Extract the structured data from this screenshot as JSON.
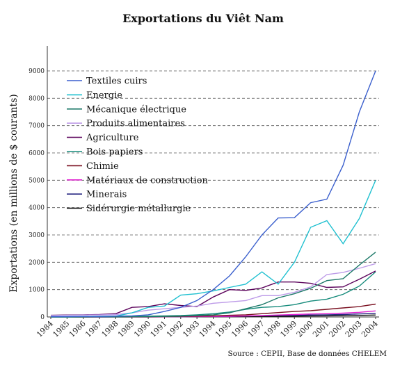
{
  "chart_data": {
    "type": "line",
    "title": "Exportations du Viêt Nam",
    "ylabel": "Exportations (en millions de $ courants)",
    "xlabel": "",
    "source": "Source : CEPII, Base de données CHELEM",
    "ylim": [
      0,
      9000
    ],
    "yticks": [
      0,
      1000,
      2000,
      3000,
      4000,
      5000,
      6000,
      7000,
      8000,
      9000
    ],
    "grid": "horizontal dashed",
    "legend_position": "top-left",
    "x": [
      1984,
      1985,
      1986,
      1987,
      1988,
      1989,
      1990,
      1991,
      1992,
      1993,
      1994,
      1995,
      1996,
      1997,
      1998,
      1999,
      2000,
      2001,
      2002,
      2003,
      2004
    ],
    "categories": [
      "1984",
      "1985",
      "1986",
      "1987",
      "1988",
      "1989",
      "1990",
      "1991",
      "1992",
      "1993",
      "1994",
      "1995",
      "1996",
      "1997",
      "1998",
      "1999",
      "2000",
      "2001",
      "2002",
      "2003",
      "2004"
    ],
    "series": [
      {
        "name": "Textiles cuirs",
        "color": "#3a5fcd",
        "values": [
          10,
          15,
          20,
          25,
          30,
          40,
          80,
          200,
          350,
          600,
          1000,
          1500,
          2200,
          3000,
          3620,
          3630,
          4180,
          4310,
          5550,
          7500,
          9000
        ]
      },
      {
        "name": "Energie",
        "color": "#1fc0d0",
        "values": [
          10,
          10,
          20,
          20,
          30,
          150,
          350,
          400,
          800,
          850,
          950,
          1080,
          1200,
          1650,
          1200,
          2000,
          3280,
          3520,
          2680,
          3600,
          5000
        ]
      },
      {
        "name": "Mécanique électrique",
        "color": "#1f7a6a",
        "values": [
          0,
          0,
          0,
          5,
          5,
          10,
          15,
          20,
          30,
          50,
          80,
          150,
          300,
          450,
          700,
          850,
          1050,
          1330,
          1400,
          1900,
          2370
        ]
      },
      {
        "name": "Produits alimentaires",
        "color": "#bd9be8",
        "values": [
          50,
          60,
          70,
          80,
          90,
          150,
          250,
          300,
          350,
          400,
          500,
          550,
          600,
          780,
          780,
          900,
          1100,
          1550,
          1630,
          1780,
          1950
        ]
      },
      {
        "name": "Agriculture",
        "color": "#5a005a",
        "values": [
          60,
          70,
          80,
          90,
          120,
          350,
          380,
          480,
          420,
          380,
          730,
          1000,
          970,
          1060,
          1280,
          1280,
          1230,
          1080,
          1100,
          1380,
          1680
        ]
      },
      {
        "name": "Bois papiers",
        "color": "#148a7a",
        "values": [
          0,
          0,
          5,
          10,
          15,
          20,
          30,
          40,
          50,
          80,
          120,
          180,
          280,
          350,
          380,
          450,
          580,
          650,
          830,
          1130,
          1650
        ]
      },
      {
        "name": "Chimie",
        "color": "#7a1020",
        "values": [
          0,
          0,
          0,
          5,
          5,
          10,
          10,
          15,
          20,
          30,
          40,
          60,
          80,
          120,
          160,
          200,
          230,
          280,
          330,
          380,
          470
        ]
      },
      {
        "name": "Matériaux de construction",
        "color": "#e020d0",
        "values": [
          0,
          0,
          0,
          0,
          5,
          5,
          5,
          10,
          10,
          15,
          20,
          25,
          35,
          50,
          70,
          90,
          110,
          120,
          140,
          170,
          220
        ]
      },
      {
        "name": "Minerais",
        "color": "#252580",
        "values": [
          0,
          0,
          0,
          0,
          5,
          5,
          5,
          10,
          10,
          15,
          20,
          25,
          35,
          45,
          55,
          60,
          70,
          80,
          90,
          110,
          130
        ]
      },
      {
        "name": "Sidérurgie métallurgie",
        "color": "#111111",
        "values": [
          0,
          0,
          0,
          0,
          0,
          0,
          0,
          5,
          5,
          5,
          10,
          10,
          15,
          20,
          25,
          30,
          35,
          40,
          45,
          55,
          70
        ]
      }
    ]
  }
}
